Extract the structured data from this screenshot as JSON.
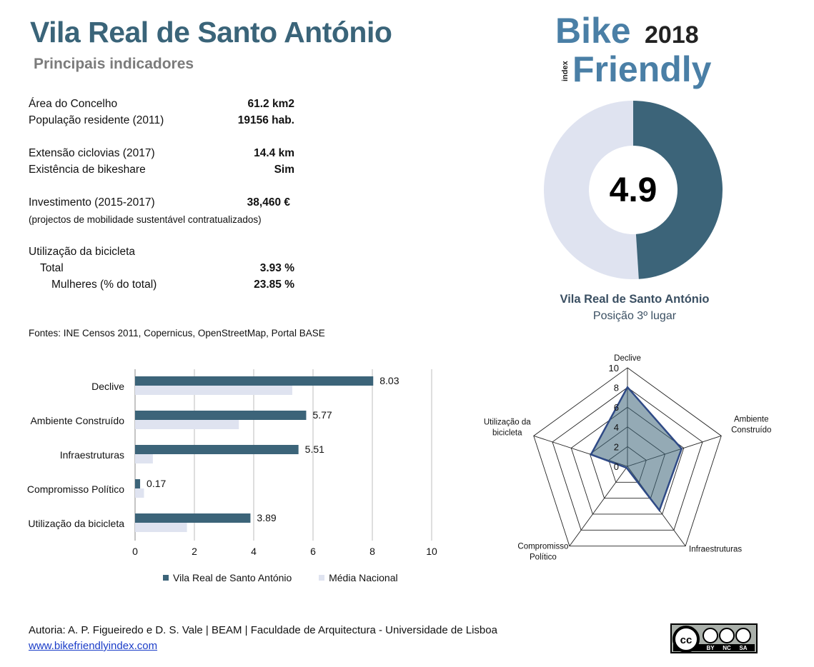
{
  "header": {
    "title": "Vila Real de Santo António",
    "subtitle": "Principais indicadores"
  },
  "logo": {
    "line1": "Bike",
    "year": "2018",
    "word_index": "index",
    "line2": "Friendly"
  },
  "indicators": {
    "area_label": "Área do Concelho",
    "area_value": "61.2 km2",
    "pop_label": "População residente (2011)",
    "pop_value": "19156 hab.",
    "cycle_label": "Extensão ciclovias (2017)",
    "cycle_value": "14.4 km",
    "bikeshare_label": "Existência de bikeshare",
    "bikeshare_value": "Sim",
    "invest_label": "Investimento (2015-2017)",
    "invest_value": "38,460 €",
    "invest_note": "(projectos de mobilidade sustentável contratualizados)",
    "usage_label": "Utilização da bicicleta",
    "total_label": "Total",
    "total_value": "3.93 %",
    "women_label": "Mulheres (% do total)",
    "women_value": "23.85 %"
  },
  "sources": "Fontes: INE Censos 2011, Copernicus, OpenStreetMap,  Portal BASE",
  "score": {
    "value": "4.9",
    "fraction": 0.49,
    "city": "Vila Real de Santo António",
    "rank": "Posição 3º lugar"
  },
  "chart_data": [
    {
      "type": "bar",
      "orientation": "horizontal",
      "categories": [
        "Declive",
        "Ambiente Construído",
        "Infraestruturas",
        "Compromisso Político",
        "Utilização da bicicleta"
      ],
      "series": [
        {
          "name": "Vila Real de Santo António",
          "values": [
            8.03,
            5.77,
            5.51,
            0.17,
            3.89
          ],
          "color": "#3c6479"
        },
        {
          "name": "Média Nacional",
          "values": [
            5.3,
            3.5,
            0.6,
            0.3,
            1.75
          ],
          "color": "#dfe3f0"
        }
      ],
      "value_labels": [
        "8.03",
        "5.77",
        "5.51",
        "0.17",
        "3.89"
      ],
      "xlim": [
        0,
        10
      ],
      "xticks": [
        "0",
        "2",
        "4",
        "6",
        "8",
        "10"
      ],
      "grid": true,
      "legend": "bottom"
    },
    {
      "type": "radar",
      "axes": [
        "Declive",
        "Ambiente Construído",
        "Infraestruturas",
        "Compromisso Político",
        "Utilização da bicicleta"
      ],
      "axis_label_lines": [
        [
          "Declive"
        ],
        [
          "Ambiente",
          "Construído"
        ],
        [
          "Infraestruturas"
        ],
        [
          "Compromisso",
          "Político"
        ],
        [
          "Utilização da",
          "bicicleta"
        ]
      ],
      "values": [
        8.03,
        5.77,
        5.51,
        0.17,
        3.89
      ],
      "rlim": [
        0,
        10
      ],
      "rticks": [
        "0",
        "2",
        "4",
        "6",
        "8",
        "10"
      ],
      "color": "#3c6479"
    }
  ],
  "footer": {
    "authors": "Autoria: A. P. Figueiredo e D. S. Vale | BEAM | Faculdade de Arquitectura - Universidade de Lisboa",
    "link": "www.bikefriendlyindex.com",
    "license": [
      "BY",
      "NC",
      "SA"
    ]
  },
  "colors": {
    "primary": "#3c6479",
    "secondary": "#dfe3f0",
    "title": "#3a6479",
    "logo": "#4a7fa6"
  }
}
